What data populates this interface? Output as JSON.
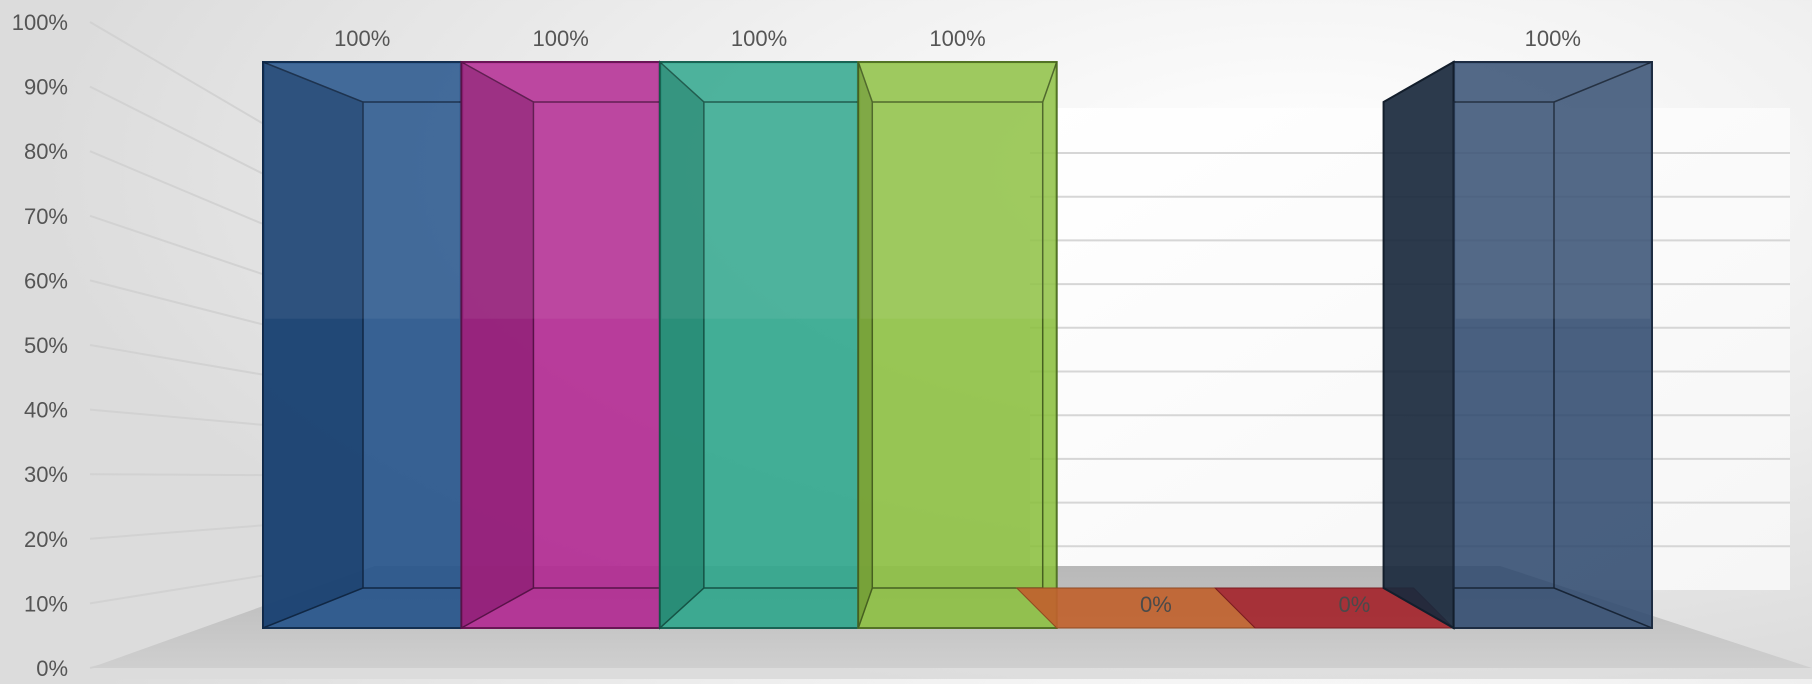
{
  "chart_data": {
    "type": "bar",
    "style": "3d-transparent-columns",
    "categories": [
      "",
      "",
      "",
      "",
      "",
      "",
      ""
    ],
    "values": [
      100,
      100,
      100,
      100,
      0,
      0,
      100
    ],
    "data_labels": [
      "100%",
      "100%",
      "100%",
      "100%",
      "0%",
      "0%",
      "100%"
    ],
    "colors": [
      "#1f4e87",
      "#b0238f",
      "#2aa58a",
      "#8bbf3f",
      "#c0622e",
      "#a4252c",
      "#304a6e"
    ],
    "y_ticks": [
      "0%",
      "10%",
      "20%",
      "30%",
      "40%",
      "50%",
      "60%",
      "70%",
      "80%",
      "90%",
      "100%"
    ],
    "ylim": [
      0,
      100
    ],
    "title": "",
    "xlabel": "",
    "ylabel": "",
    "grid": true,
    "legend": "none"
  }
}
